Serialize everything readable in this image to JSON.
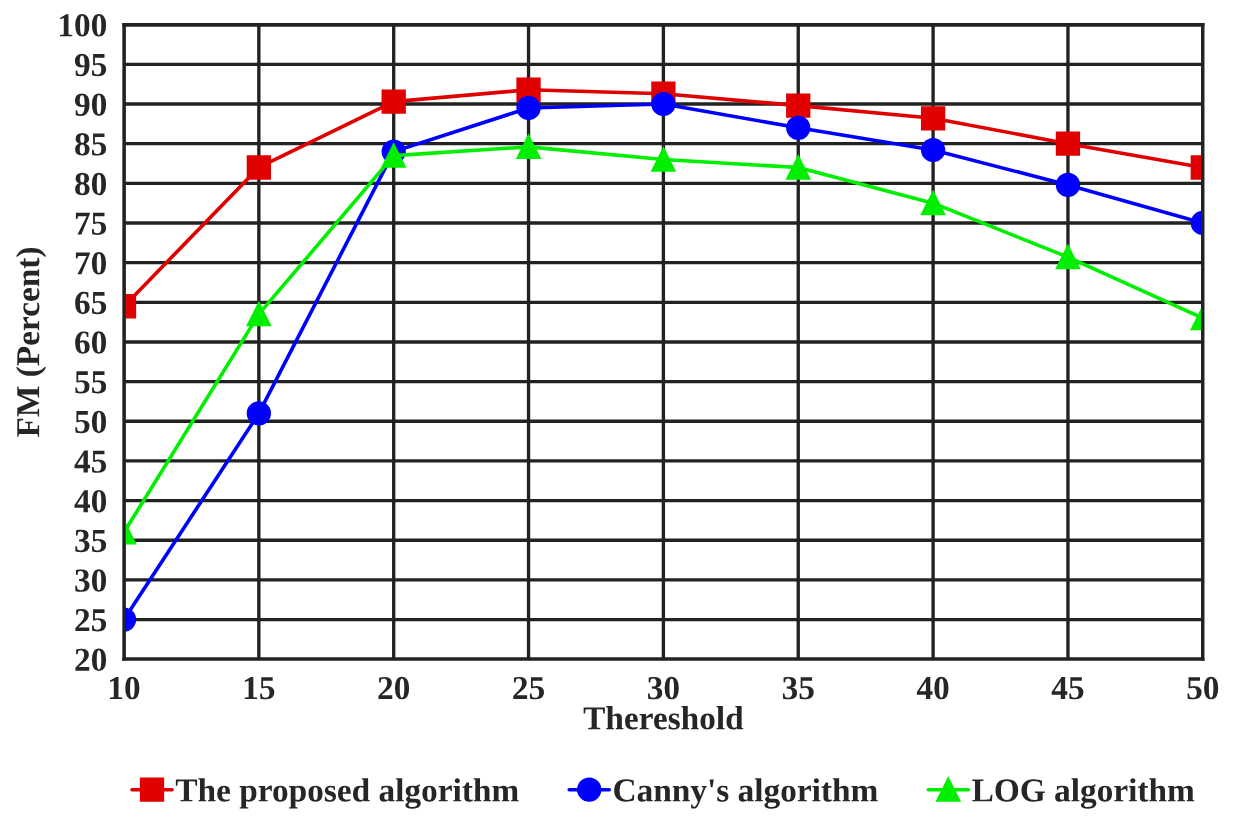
{
  "chart_data": {
    "type": "line",
    "xlabel": "Thereshold",
    "ylabel": "FM (Percent)",
    "x": [
      10,
      15,
      20,
      25,
      30,
      35,
      40,
      45,
      50
    ],
    "series": [
      {
        "name": "The proposed algorithm",
        "color": "#e00000",
        "marker": "square",
        "values": [
          64.5,
          82,
          90.3,
          91.8,
          91.3,
          89.8,
          88.2,
          85,
          82
        ]
      },
      {
        "name": "Canny's algorithm",
        "color": "#0000ff",
        "marker": "circle",
        "values": [
          25,
          51,
          84,
          89.5,
          90,
          87,
          84.2,
          79.8,
          75
        ]
      },
      {
        "name": "LOG algorithm",
        "color": "#00ee00",
        "marker": "triangle",
        "values": [
          36,
          63.5,
          83.5,
          84.6,
          83,
          82,
          77.5,
          70.7,
          63
        ]
      }
    ],
    "xlim": [
      10,
      50
    ],
    "xticks": [
      10,
      15,
      20,
      25,
      30,
      35,
      40,
      45,
      50
    ],
    "ylim": [
      20,
      100
    ],
    "yticks": [
      20,
      25,
      30,
      35,
      40,
      45,
      50,
      55,
      60,
      65,
      70,
      75,
      80,
      85,
      90,
      95,
      100
    ],
    "grid": true,
    "legend": "bottom",
    "line_style": "solid"
  }
}
